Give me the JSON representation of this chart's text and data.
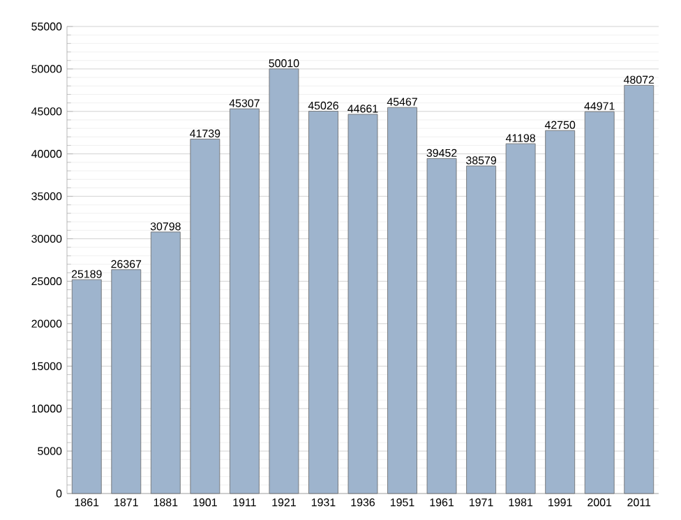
{
  "chart_data": {
    "type": "bar",
    "categories": [
      "1861",
      "1871",
      "1881",
      "1901",
      "1911",
      "1921",
      "1931",
      "1936",
      "1951",
      "1961",
      "1971",
      "1981",
      "1991",
      "2001",
      "2011"
    ],
    "values": [
      25189,
      26367,
      30798,
      41739,
      45307,
      50010,
      45026,
      44661,
      45467,
      39452,
      38579,
      41198,
      42750,
      44971,
      48072
    ],
    "color": "#9eb4cd",
    "ylim": [
      0,
      55000
    ],
    "yticks": [
      0,
      5000,
      10000,
      15000,
      20000,
      25000,
      30000,
      35000,
      40000,
      45000,
      50000,
      55000
    ],
    "grid": "y",
    "data_labels": true
  }
}
